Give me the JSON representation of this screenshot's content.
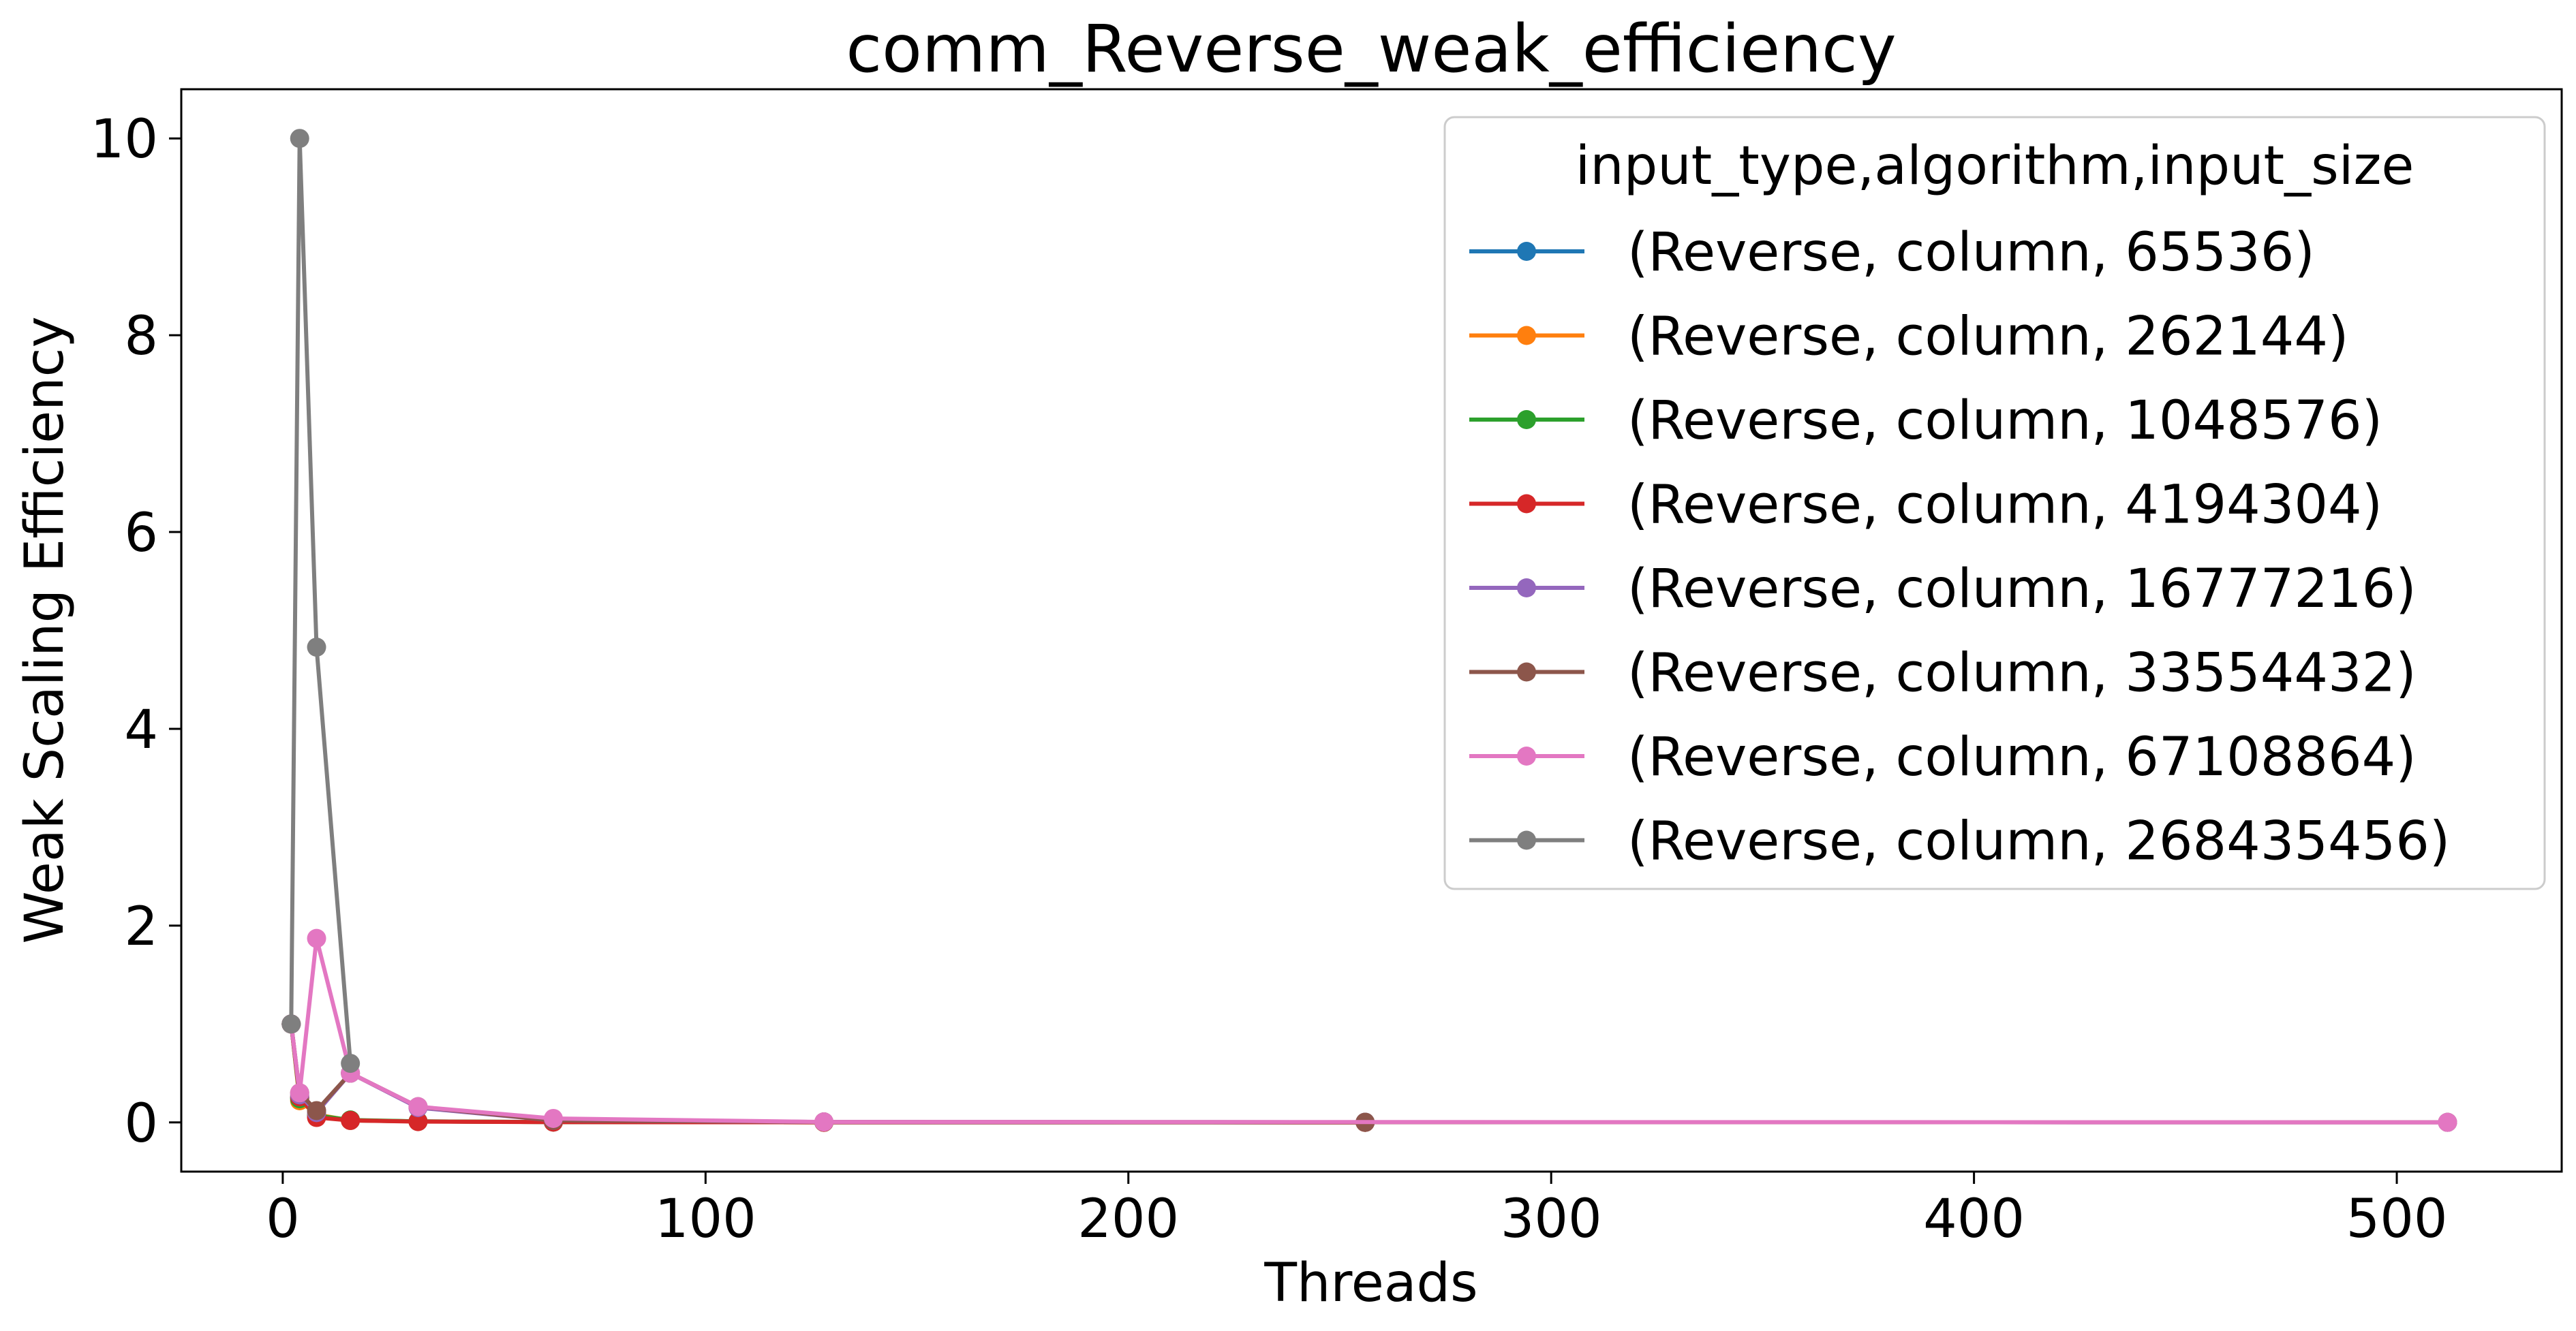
{
  "chart_data": {
    "type": "line",
    "title": "comm_Reverse_weak_efficiency",
    "xlabel": "Threads",
    "ylabel": "Weak Scaling Efficiency",
    "xlim": [
      -24,
      539
    ],
    "ylim": [
      -0.5,
      10.5
    ],
    "xticks": [
      0,
      100,
      200,
      300,
      400,
      500
    ],
    "yticks": [
      0,
      2,
      4,
      6,
      8,
      10
    ],
    "grid": false,
    "legend": {
      "title": "input_type,algorithm,input_size",
      "placement": "upper right"
    },
    "series": [
      {
        "name": "(Reverse, column, 65536)",
        "color": "#1f77b4",
        "x": [
          2,
          4,
          8,
          16,
          32,
          64,
          128,
          256
        ],
        "y": [
          1.0,
          0.25,
          0.06,
          0.02,
          0.01,
          0.003,
          0.001,
          0.0005
        ]
      },
      {
        "name": "(Reverse, column, 262144)",
        "color": "#ff7f0e",
        "x": [
          2,
          4,
          8,
          16,
          32,
          64,
          128,
          256
        ],
        "y": [
          1.0,
          0.22,
          0.08,
          0.02,
          0.01,
          0.004,
          0.001,
          0.0005
        ]
      },
      {
        "name": "(Reverse, column, 1048576)",
        "color": "#2ca02c",
        "x": [
          2,
          4,
          8,
          16,
          32,
          64,
          128,
          256
        ],
        "y": [
          1.0,
          0.24,
          0.07,
          0.025,
          0.01,
          0.004,
          0.001,
          0.0005
        ]
      },
      {
        "name": "(Reverse, column, 4194304)",
        "color": "#d62728",
        "x": [
          2,
          4,
          8,
          16,
          32,
          64,
          128,
          256
        ],
        "y": [
          1.0,
          0.26,
          0.05,
          0.02,
          0.008,
          0.003,
          0.001,
          0.0005
        ]
      },
      {
        "name": "(Reverse, column, 16777216)",
        "color": "#9467bd",
        "x": [
          2,
          4,
          8,
          16,
          32,
          64,
          128,
          256,
          512
        ],
        "y": [
          1.0,
          0.28,
          0.1,
          0.5,
          0.15,
          0.02,
          0.005,
          0.002,
          0.001
        ]
      },
      {
        "name": "(Reverse, column, 33554432)",
        "color": "#8c564b",
        "x": [
          2,
          4,
          8,
          16,
          32,
          64,
          128,
          256,
          512
        ],
        "y": [
          1.0,
          0.3,
          0.12,
          0.5,
          0.16,
          0.02,
          0.005,
          0.002,
          0.001
        ]
      },
      {
        "name": "(Reverse, column, 67108864)",
        "color": "#e377c2",
        "x": [
          2,
          4,
          8,
          16,
          32,
          64,
          128,
          512
        ],
        "y": [
          1.0,
          0.3,
          1.87,
          0.5,
          0.16,
          0.04,
          0.005,
          0.001
        ]
      },
      {
        "name": "(Reverse, column, 268435456)",
        "color": "#7f7f7f",
        "x": [
          2,
          4,
          8,
          16
        ],
        "y": [
          1.0,
          10.0,
          4.83,
          0.6
        ]
      }
    ]
  }
}
